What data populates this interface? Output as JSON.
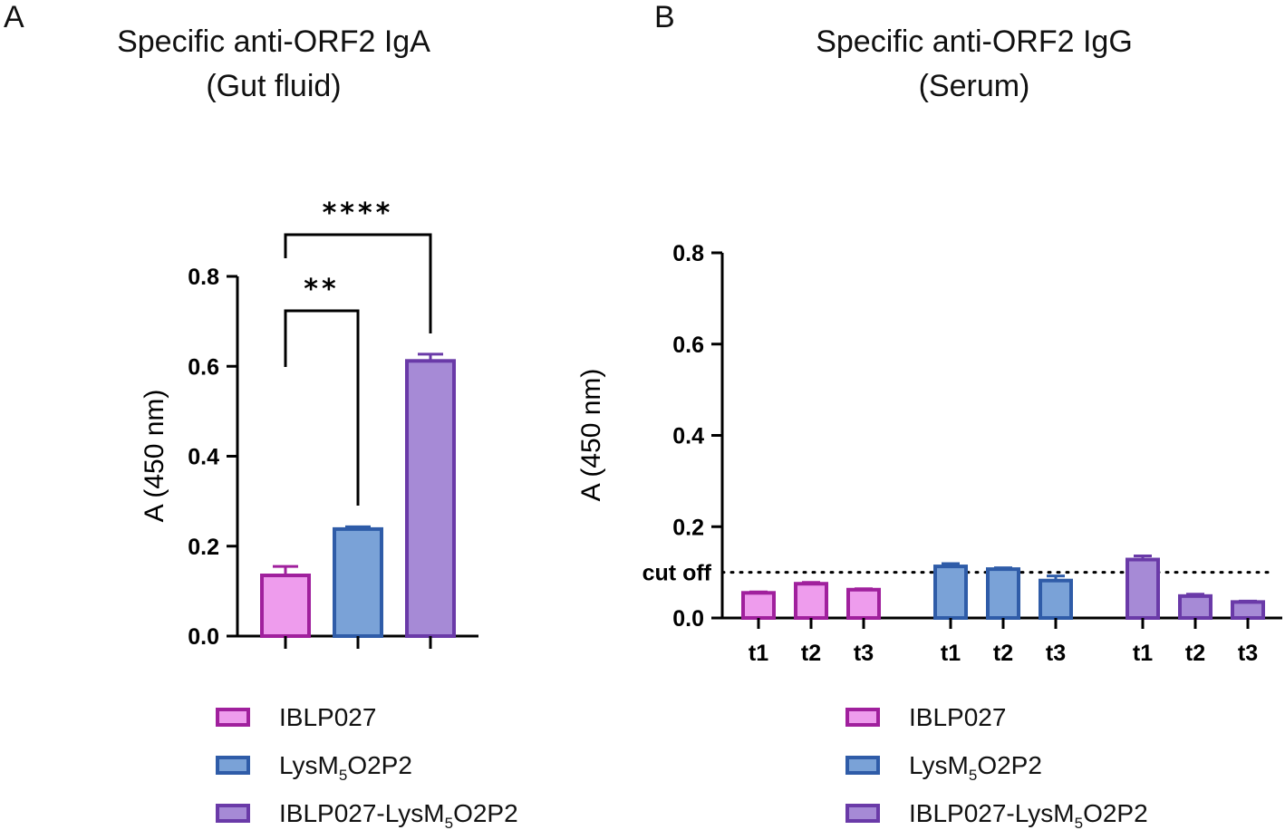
{
  "chart_data": [
    {
      "panel": "A",
      "type": "bar",
      "title": "Specific anti-ORF2 IgA",
      "subtitle": "(Gut fluid)",
      "ylabel": "A (450 nm)",
      "xlabel": "",
      "ylim": [
        0,
        0.8
      ],
      "yticks": [
        "0.0",
        "0.2",
        "0.4",
        "0.6",
        "0.8"
      ],
      "categories": [
        "IBLP027",
        "LysM5O2P2",
        "IBLP027-LysM5O2P2"
      ],
      "values": [
        0.135,
        0.238,
        0.612
      ],
      "errors": [
        0.02,
        0.005,
        0.015
      ],
      "significance": [
        {
          "from": 0,
          "to": 1,
          "label": "**"
        },
        {
          "from": 0,
          "to": 2,
          "label": "****"
        }
      ]
    },
    {
      "panel": "B",
      "type": "bar",
      "title": "Specific anti-ORF2 IgG",
      "subtitle": "(Serum)",
      "ylabel": "A (450 nm)",
      "xlabel": "",
      "ylim": [
        0,
        0.8
      ],
      "yticks": [
        "0.0",
        "0.2",
        "0.4",
        "0.6",
        "0.8"
      ],
      "categories": [
        "t1",
        "t2",
        "t3"
      ],
      "series": [
        {
          "name": "IBLP027",
          "values": [
            0.055,
            0.075,
            0.062
          ],
          "errors": [
            0.002,
            0.003,
            0.002
          ]
        },
        {
          "name": "LysM5O2P2",
          "values": [
            0.113,
            0.107,
            0.082
          ],
          "errors": [
            0.006,
            0.003,
            0.01
          ]
        },
        {
          "name": "IBLP027-LysM5O2P2",
          "values": [
            0.128,
            0.048,
            0.035
          ],
          "errors": [
            0.008,
            0.004,
            0.002
          ]
        }
      ],
      "cutoff": {
        "value": 0.1,
        "label": "cut off"
      }
    }
  ],
  "legend": {
    "items": [
      {
        "prefix": "IBLP027",
        "sub": "",
        "suffix": ""
      },
      {
        "prefix": "LysM",
        "sub": "5",
        "suffix": "O2P2"
      },
      {
        "prefix": "IBLP027-LysM",
        "sub": "5",
        "suffix": "O2P2"
      }
    ]
  },
  "colors": {
    "fills": [
      "#ee9ced",
      "#7aa2d7",
      "#a68ad6"
    ],
    "strokes": [
      "#a0209d",
      "#2f5ca8",
      "#6a3aa8"
    ]
  }
}
